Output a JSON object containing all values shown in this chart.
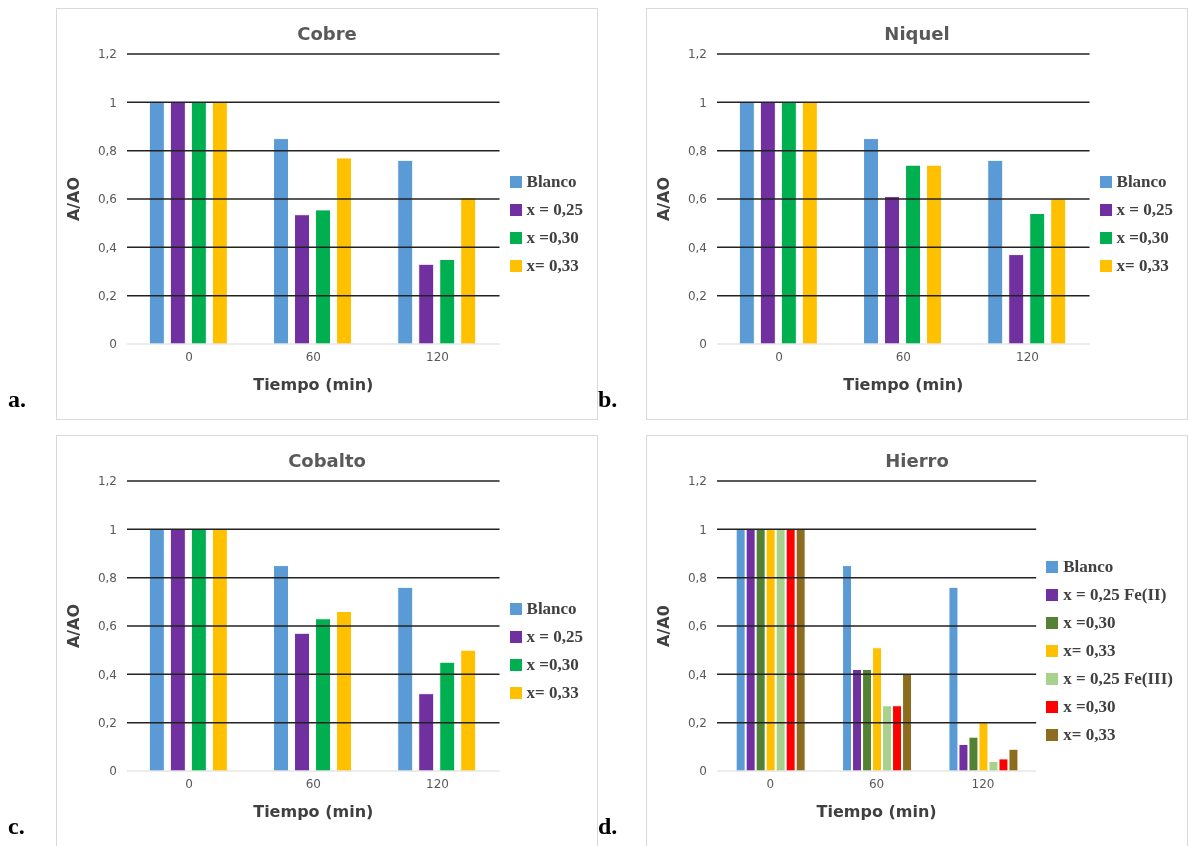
{
  "chart_data": [
    {
      "type": "bar",
      "title": "Cobre",
      "xlabel": "Tiempo (min)",
      "ylabel": "A/AO",
      "annotations": [
        "a."
      ],
      "categories": [
        "0",
        "60",
        "120"
      ],
      "ylim": [
        0,
        1.2
      ],
      "yticks": [
        {
          "value": 0,
          "label": "0"
        },
        {
          "value": 0.2,
          "label": "0,2"
        },
        {
          "value": 0.4,
          "label": "0,4"
        },
        {
          "value": 0.6,
          "label": "0,6"
        },
        {
          "value": 0.8,
          "label": "0,8"
        },
        {
          "value": 1,
          "label": "1"
        },
        {
          "value": 1.2,
          "label": "1,2"
        }
      ],
      "grid": "y",
      "legend": "right",
      "series": [
        {
          "name": "Blanco",
          "color": "#5b9bd5",
          "values": [
            1,
            0.85,
            0.76
          ]
        },
        {
          "name": "x = 0,25",
          "color": "#7030a0",
          "values": [
            1,
            0.535,
            0.33
          ]
        },
        {
          "name": "x =0,30",
          "color": "#00b050",
          "values": [
            1,
            0.555,
            0.35
          ]
        },
        {
          "name": "x= 0,33",
          "color": "#ffc000",
          "values": [
            1,
            0.77,
            0.605
          ]
        }
      ]
    },
    {
      "type": "bar",
      "title": "Niquel",
      "xlabel": "Tiempo (min)",
      "ylabel": "A/AO",
      "annotations": [
        "b."
      ],
      "categories": [
        "0",
        "60",
        "120"
      ],
      "ylim": [
        0,
        1.2
      ],
      "yticks": [
        {
          "value": 0,
          "label": "0"
        },
        {
          "value": 0.2,
          "label": "0,2"
        },
        {
          "value": 0.4,
          "label": "0,4"
        },
        {
          "value": 0.6,
          "label": "0,6"
        },
        {
          "value": 0.8,
          "label": "0,8"
        },
        {
          "value": 1,
          "label": "1"
        },
        {
          "value": 1.2,
          "label": "1,2"
        }
      ],
      "grid": "y",
      "legend": "right",
      "series": [
        {
          "name": "Blanco",
          "color": "#5b9bd5",
          "values": [
            1,
            0.85,
            0.76
          ]
        },
        {
          "name": "x = 0,25",
          "color": "#7030a0",
          "values": [
            1,
            0.61,
            0.37
          ]
        },
        {
          "name": "x =0,30",
          "color": "#00b050",
          "values": [
            1,
            0.74,
            0.54
          ]
        },
        {
          "name": "x= 0,33",
          "color": "#ffc000",
          "values": [
            1,
            0.74,
            0.6
          ]
        }
      ]
    },
    {
      "type": "bar",
      "title": "Cobalto",
      "xlabel": "Tiempo (min)",
      "ylabel": "A/AO",
      "annotations": [
        "c."
      ],
      "categories": [
        "0",
        "60",
        "120"
      ],
      "ylim": [
        0,
        1.2
      ],
      "yticks": [
        {
          "value": 0,
          "label": "0"
        },
        {
          "value": 0.2,
          "label": "0,2"
        },
        {
          "value": 0.4,
          "label": "0,4"
        },
        {
          "value": 0.6,
          "label": "0,6"
        },
        {
          "value": 0.8,
          "label": "0,8"
        },
        {
          "value": 1,
          "label": "1"
        },
        {
          "value": 1.2,
          "label": "1,2"
        }
      ],
      "grid": "y",
      "legend": "right",
      "series": [
        {
          "name": "Blanco",
          "color": "#5b9bd5",
          "values": [
            1,
            0.85,
            0.76
          ]
        },
        {
          "name": "x = 0,25",
          "color": "#7030a0",
          "values": [
            1,
            0.57,
            0.32
          ]
        },
        {
          "name": "x =0,30",
          "color": "#00b050",
          "values": [
            1,
            0.63,
            0.45
          ]
        },
        {
          "name": "x= 0,33",
          "color": "#ffc000",
          "values": [
            1,
            0.66,
            0.5
          ]
        }
      ]
    },
    {
      "type": "bar",
      "title": "Hierro",
      "xlabel": "Tiempo (min)",
      "ylabel": "A/A0",
      "annotations": [
        "d."
      ],
      "categories": [
        "0",
        "60",
        "120"
      ],
      "ylim": [
        0,
        1.2
      ],
      "yticks": [
        {
          "value": 0,
          "label": "0"
        },
        {
          "value": 0.2,
          "label": "0,2"
        },
        {
          "value": 0.4,
          "label": "0,4"
        },
        {
          "value": 0.6,
          "label": "0,6"
        },
        {
          "value": 0.8,
          "label": "0,8"
        },
        {
          "value": 1,
          "label": "1"
        },
        {
          "value": 1.2,
          "label": "1,2"
        }
      ],
      "grid": "y",
      "legend": "right",
      "series": [
        {
          "name": "Blanco",
          "color": "#5b9bd5",
          "values": [
            1,
            0.85,
            0.76
          ]
        },
        {
          "name": "x = 0,25 Fe(II)",
          "color": "#7030a0",
          "values": [
            1,
            0.42,
            0.11
          ]
        },
        {
          "name": "x =0,30",
          "color": "#548235",
          "values": [
            1,
            0.42,
            0.14
          ]
        },
        {
          "name": "x= 0,33",
          "color": "#ffc000",
          "values": [
            1,
            0.51,
            0.2
          ]
        },
        {
          "name": "x = 0,25 Fe(III)",
          "color": "#a9d18e",
          "values": [
            1,
            0.27,
            0.04
          ]
        },
        {
          "name": "x =0,30",
          "color": "#ff0000",
          "values": [
            1,
            0.27,
            0.05
          ]
        },
        {
          "name": "x= 0,33",
          "color": "#8c6d1f",
          "values": [
            1,
            0.4,
            0.09
          ]
        }
      ]
    }
  ]
}
